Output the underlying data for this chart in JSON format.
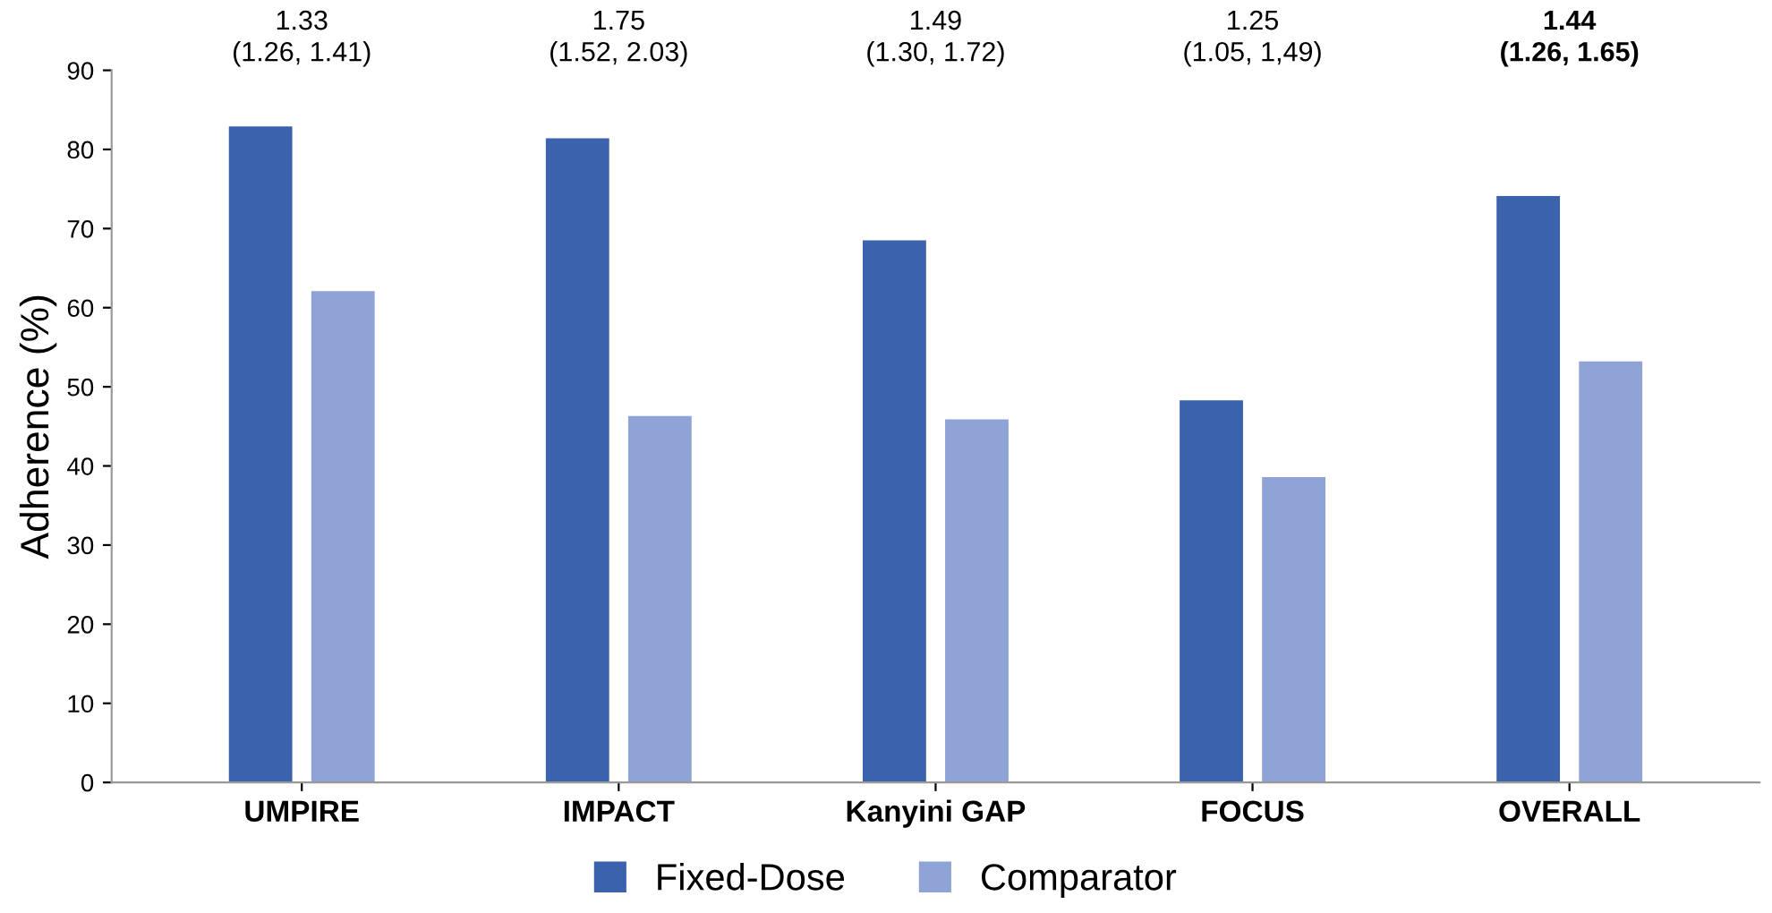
{
  "chart_data": {
    "type": "bar",
    "ylabel": "Adherence (%)",
    "categories": [
      "UMPIRE",
      "IMPACT",
      "Kanyini GAP",
      "FOCUS",
      "OVERALL"
    ],
    "series": [
      {
        "name": "Fixed-Dose",
        "color": "#3a62ad",
        "values": [
          82.9,
          81.4,
          68.5,
          48.3,
          74.1
        ]
      },
      {
        "name": "Comparator",
        "color": "#8fa3d6",
        "values": [
          62.1,
          46.3,
          45.9,
          38.6,
          53.2
        ]
      }
    ],
    "annotations": [
      "1.33\n(1.26, 1.41)",
      "1.75\n(1.52, 2.03)",
      "1.49\n(1.30, 1.72)",
      "1.25\n(1.05, 1,49)",
      "1.44\n(1.26, 1.65)"
    ],
    "ylim": [
      0,
      90
    ],
    "yticks": [
      0,
      10,
      20,
      30,
      40,
      50,
      60,
      70,
      80,
      90
    ],
    "grid": false,
    "legend": "bottom"
  }
}
